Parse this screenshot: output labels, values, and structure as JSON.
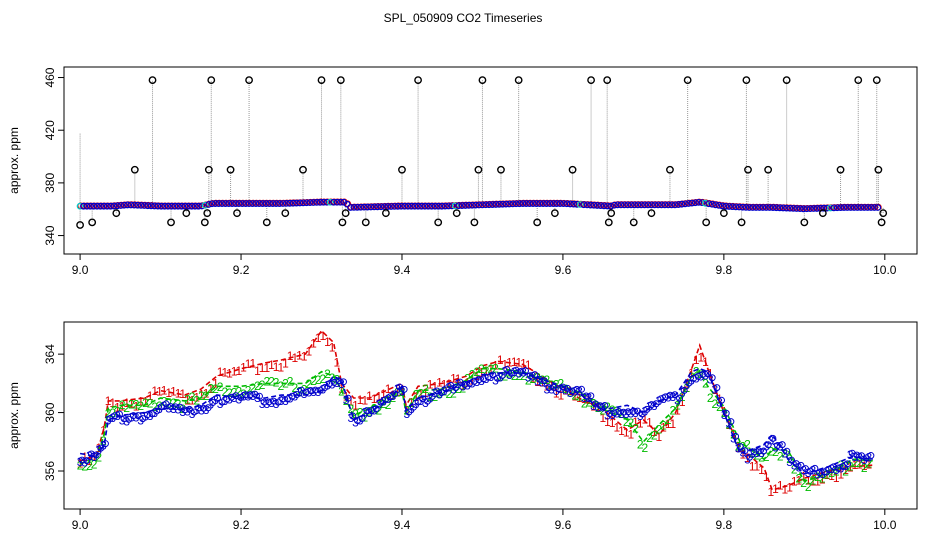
{
  "title": "SPL_050909  CO2 Timeseries",
  "colors": {
    "red": "#dd0000",
    "green": "#00bb00",
    "blue": "#0000cc",
    "cyan": "#00cccc",
    "gray": "#999999",
    "black": "#000000"
  },
  "chart_data": [
    {
      "type": "scatter",
      "title": "",
      "xlabel": "",
      "ylabel": "approx. ppm",
      "xlim": [
        8.98,
        10.04
      ],
      "ylim": [
        326,
        468
      ],
      "xticks": [
        9.0,
        9.2,
        9.4,
        9.6,
        9.8,
        10.0
      ],
      "xtick_labels": [
        "9.0",
        "9.2",
        "9.4",
        "9.6",
        "9.8",
        "10.0"
      ],
      "yticks": [
        340,
        380,
        420,
        460
      ],
      "ytick_labels": [
        "340",
        "380",
        "420",
        "460"
      ],
      "grid": false,
      "baseline": [
        [
          9.0,
          362
        ],
        [
          9.04,
          362
        ],
        [
          9.06,
          363
        ],
        [
          9.1,
          362
        ],
        [
          9.15,
          362
        ],
        [
          9.165,
          364
        ],
        [
          9.2,
          364
        ],
        [
          9.25,
          364
        ],
        [
          9.3,
          365
        ],
        [
          9.33,
          365
        ],
        [
          9.335,
          361
        ],
        [
          9.4,
          362
        ],
        [
          9.45,
          362
        ],
        [
          9.5,
          363
        ],
        [
          9.55,
          364
        ],
        [
          9.6,
          364
        ],
        [
          9.66,
          362
        ],
        [
          9.665,
          363
        ],
        [
          9.7,
          363
        ],
        [
          9.74,
          363
        ],
        [
          9.77,
          365
        ],
        [
          9.8,
          362
        ],
        [
          9.83,
          361
        ],
        [
          9.86,
          361
        ],
        [
          9.9,
          360
        ],
        [
          9.95,
          361
        ],
        [
          9.99,
          361
        ]
      ],
      "outliers": [
        [
          9.0,
          348
        ],
        [
          9.015,
          350
        ],
        [
          9.045,
          357
        ],
        [
          9.068,
          390
        ],
        [
          9.09,
          458
        ],
        [
          9.113,
          350
        ],
        [
          9.132,
          357
        ],
        [
          9.155,
          350
        ],
        [
          9.158,
          357
        ],
        [
          9.16,
          390
        ],
        [
          9.163,
          458
        ],
        [
          9.187,
          390
        ],
        [
          9.195,
          357
        ],
        [
          9.21,
          458
        ],
        [
          9.232,
          350
        ],
        [
          9.255,
          357
        ],
        [
          9.277,
          390
        ],
        [
          9.3,
          458
        ],
        [
          9.324,
          458
        ],
        [
          9.326,
          350
        ],
        [
          9.33,
          357
        ],
        [
          9.355,
          350
        ],
        [
          9.38,
          357
        ],
        [
          9.4,
          390
        ],
        [
          9.42,
          458
        ],
        [
          9.445,
          350
        ],
        [
          9.468,
          357
        ],
        [
          9.49,
          350
        ],
        [
          9.495,
          390
        ],
        [
          9.5,
          458
        ],
        [
          9.523,
          390
        ],
        [
          9.545,
          458
        ],
        [
          9.568,
          350
        ],
        [
          9.59,
          357
        ],
        [
          9.612,
          390
        ],
        [
          9.635,
          458
        ],
        [
          9.655,
          458
        ],
        [
          9.657,
          350
        ],
        [
          9.66,
          357
        ],
        [
          9.688,
          350
        ],
        [
          9.71,
          357
        ],
        [
          9.733,
          390
        ],
        [
          9.755,
          458
        ],
        [
          9.778,
          350
        ],
        [
          9.8,
          357
        ],
        [
          9.822,
          350
        ],
        [
          9.828,
          458
        ],
        [
          9.83,
          390
        ],
        [
          9.855,
          390
        ],
        [
          9.878,
          458
        ],
        [
          9.9,
          350
        ],
        [
          9.923,
          357
        ],
        [
          9.945,
          390
        ],
        [
          9.967,
          458
        ],
        [
          9.99,
          458
        ],
        [
          9.992,
          390
        ],
        [
          9.996,
          350
        ],
        [
          9.998,
          357
        ]
      ]
    },
    {
      "type": "line",
      "title": "",
      "xlabel": "",
      "ylabel": "approx. ppm",
      "xlim": [
        8.98,
        10.04
      ],
      "ylim": [
        353.4,
        366.2
      ],
      "xticks": [
        9.0,
        9.2,
        9.4,
        9.6,
        9.8,
        10.0
      ],
      "xtick_labels": [
        "9.0",
        "9.2",
        "9.4",
        "9.6",
        "9.8",
        "10.0"
      ],
      "yticks": [
        356,
        360,
        364
      ],
      "ytick_labels": [
        "356",
        "360",
        "364"
      ],
      "grid": false,
      "series": [
        {
          "marker": "1",
          "color": "red",
          "points": [
            [
              9.0,
              356.7
            ],
            [
              9.02,
              357.0
            ],
            [
              9.03,
              359.0
            ],
            [
              9.035,
              360.8
            ],
            [
              9.05,
              360.8
            ],
            [
              9.08,
              361.0
            ],
            [
              9.1,
              361.5
            ],
            [
              9.13,
              361.2
            ],
            [
              9.15,
              361.6
            ],
            [
              9.17,
              362.5
            ],
            [
              9.2,
              363.0
            ],
            [
              9.23,
              363.4
            ],
            [
              9.25,
              363.6
            ],
            [
              9.28,
              364.0
            ],
            [
              9.3,
              365.6
            ],
            [
              9.315,
              364.8
            ],
            [
              9.325,
              362.0
            ],
            [
              9.34,
              361.0
            ],
            [
              9.36,
              361.0
            ],
            [
              9.38,
              361.5
            ],
            [
              9.4,
              362.0
            ],
            [
              9.405,
              360.5
            ],
            [
              9.42,
              361.8
            ],
            [
              9.45,
              362.0
            ],
            [
              9.48,
              362.5
            ],
            [
              9.5,
              363.2
            ],
            [
              9.52,
              363.5
            ],
            [
              9.55,
              363.3
            ],
            [
              9.6,
              361.6
            ],
            [
              9.62,
              361.0
            ],
            [
              9.65,
              360.2
            ],
            [
              9.68,
              358.8
            ],
            [
              9.7,
              359.5
            ],
            [
              9.72,
              358.5
            ],
            [
              9.74,
              360.0
            ],
            [
              9.76,
              363.0
            ],
            [
              9.77,
              364.6
            ],
            [
              9.78,
              363.0
            ],
            [
              9.8,
              360.0
            ],
            [
              9.82,
              357.6
            ],
            [
              9.85,
              356.2
            ],
            [
              9.86,
              354.7
            ],
            [
              9.88,
              355.0
            ],
            [
              9.9,
              355.5
            ],
            [
              9.93,
              356.0
            ],
            [
              9.96,
              356.3
            ],
            [
              9.985,
              356.4
            ]
          ]
        },
        {
          "marker": "2",
          "color": "green",
          "points": [
            [
              9.0,
              356.5
            ],
            [
              9.02,
              356.9
            ],
            [
              9.03,
              358.5
            ],
            [
              9.035,
              360.3
            ],
            [
              9.05,
              360.5
            ],
            [
              9.08,
              360.5
            ],
            [
              9.1,
              361.0
            ],
            [
              9.13,
              360.8
            ],
            [
              9.15,
              361.0
            ],
            [
              9.17,
              361.8
            ],
            [
              9.2,
              361.8
            ],
            [
              9.23,
              362.0
            ],
            [
              9.25,
              362.0
            ],
            [
              9.28,
              362.0
            ],
            [
              9.3,
              362.8
            ],
            [
              9.315,
              362.5
            ],
            [
              9.325,
              361.5
            ],
            [
              9.34,
              359.8
            ],
            [
              9.36,
              360.3
            ],
            [
              9.38,
              361.0
            ],
            [
              9.4,
              361.5
            ],
            [
              9.405,
              360.0
            ],
            [
              9.42,
              361.5
            ],
            [
              9.45,
              361.6
            ],
            [
              9.48,
              362.2
            ],
            [
              9.5,
              363.0
            ],
            [
              9.52,
              363.0
            ],
            [
              9.55,
              362.8
            ],
            [
              9.6,
              361.8
            ],
            [
              9.62,
              361.4
            ],
            [
              9.65,
              360.5
            ],
            [
              9.68,
              359.5
            ],
            [
              9.7,
              358.0
            ],
            [
              9.72,
              359.2
            ],
            [
              9.74,
              360.3
            ],
            [
              9.76,
              362.5
            ],
            [
              9.77,
              362.8
            ],
            [
              9.78,
              361.8
            ],
            [
              9.8,
              360.4
            ],
            [
              9.82,
              358.0
            ],
            [
              9.85,
              356.8
            ],
            [
              9.86,
              357.5
            ],
            [
              9.88,
              357.4
            ],
            [
              9.9,
              355.3
            ],
            [
              9.93,
              355.8
            ],
            [
              9.96,
              356.8
            ],
            [
              9.985,
              356.7
            ]
          ]
        },
        {
          "marker": "3",
          "color": "blue",
          "points": [
            [
              9.0,
              357.2
            ],
            [
              9.02,
              357.0
            ],
            [
              9.03,
              357.8
            ],
            [
              9.035,
              359.5
            ],
            [
              9.05,
              359.8
            ],
            [
              9.08,
              360.0
            ],
            [
              9.1,
              360.3
            ],
            [
              9.13,
              360.2
            ],
            [
              9.15,
              360.5
            ],
            [
              9.17,
              361.2
            ],
            [
              9.2,
              361.0
            ],
            [
              9.23,
              361.0
            ],
            [
              9.25,
              361.2
            ],
            [
              9.28,
              361.2
            ],
            [
              9.3,
              361.5
            ],
            [
              9.315,
              362.5
            ],
            [
              9.325,
              362.2
            ],
            [
              9.34,
              359.5
            ],
            [
              9.36,
              360.0
            ],
            [
              9.38,
              360.8
            ],
            [
              9.4,
              361.8
            ],
            [
              9.405,
              360.2
            ],
            [
              9.42,
              361.0
            ],
            [
              9.45,
              361.4
            ],
            [
              9.48,
              362.0
            ],
            [
              9.5,
              362.6
            ],
            [
              9.52,
              362.7
            ],
            [
              9.55,
              362.7
            ],
            [
              9.6,
              361.8
            ],
            [
              9.62,
              361.3
            ],
            [
              9.65,
              360.2
            ],
            [
              9.68,
              360.5
            ],
            [
              9.7,
              360.0
            ],
            [
              9.72,
              360.8
            ],
            [
              9.74,
              361.2
            ],
            [
              9.76,
              362.8
            ],
            [
              9.77,
              363.0
            ],
            [
              9.78,
              362.8
            ],
            [
              9.8,
              360.0
            ],
            [
              9.82,
              357.2
            ],
            [
              9.85,
              357.8
            ],
            [
              9.86,
              358.5
            ],
            [
              9.88,
              356.8
            ],
            [
              9.9,
              355.8
            ],
            [
              9.93,
              356.3
            ],
            [
              9.96,
              357.0
            ],
            [
              9.985,
              356.8
            ]
          ]
        }
      ]
    }
  ]
}
